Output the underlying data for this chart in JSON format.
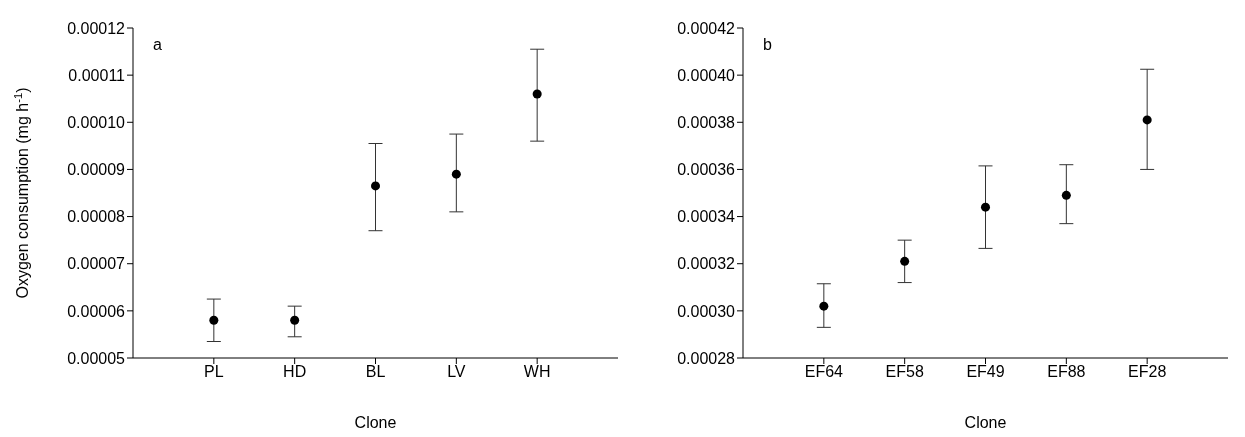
{
  "chart_data": [
    {
      "type": "scatter",
      "title": "a",
      "xlabel": "Clone",
      "ylabel": "Oxygen consumption (mg h$^{-1}$)",
      "categories": [
        "PL",
        "HD",
        "BL",
        "LV",
        "WH"
      ],
      "marker": "circle",
      "series": [
        {
          "color": "#000000",
          "values": [
            5.8e-05,
            5.8e-05,
            8.65e-05,
            8.9e-05,
            0.000106
          ],
          "errors": [
            [
              5.35e-05,
              6.25e-05
            ],
            [
              5.45e-05,
              6.1e-05
            ],
            [
              7.7e-05,
              9.55e-05
            ],
            [
              8.1e-05,
              9.75e-05
            ],
            [
              9.6e-05,
              0.0001155
            ]
          ]
        }
      ],
      "ylim": [
        5e-05,
        0.00012
      ],
      "yticks": [
        {
          "value": 5e-05,
          "label": "0.00005"
        },
        {
          "value": 6e-05,
          "label": "0.00006"
        },
        {
          "value": 7e-05,
          "label": "0.00007"
        },
        {
          "value": 8e-05,
          "label": "0.00008"
        },
        {
          "value": 9e-05,
          "label": "0.00009"
        },
        {
          "value": 0.0001,
          "label": "0.00010"
        },
        {
          "value": 0.00011,
          "label": "0.00011"
        },
        {
          "value": 0.00012,
          "label": "0.00012"
        }
      ],
      "grid": false,
      "legend": false
    },
    {
      "type": "scatter",
      "title": "b",
      "xlabel": "Clone",
      "categories": [
        "EF64",
        "EF58",
        "EF49",
        "EF88",
        "EF28"
      ],
      "marker": "circle",
      "series": [
        {
          "color": "#000000",
          "values": [
            0.000302,
            0.000321,
            0.000344,
            0.000349,
            0.000381
          ],
          "errors": [
            [
              0.000293,
              0.0003115
            ],
            [
              0.000312,
              0.00033
            ],
            [
              0.0003265,
              0.0003615
            ],
            [
              0.000337,
              0.000362
            ],
            [
              0.00036,
              0.0004025
            ]
          ]
        }
      ],
      "ylim": [
        0.00028,
        0.00042
      ],
      "yticks": [
        {
          "value": 0.00028,
          "label": "0.00028"
        },
        {
          "value": 0.0003,
          "label": "0.00030"
        },
        {
          "value": 0.00032,
          "label": "0.00032"
        },
        {
          "value": 0.00034,
          "label": "0.00034"
        },
        {
          "value": 0.00036,
          "label": "0.00036"
        },
        {
          "value": 0.00038,
          "label": "0.00038"
        },
        {
          "value": 0.0004,
          "label": "0.00040"
        },
        {
          "value": 0.00042,
          "label": "0.00042"
        }
      ],
      "grid": false,
      "legend": false
    }
  ]
}
